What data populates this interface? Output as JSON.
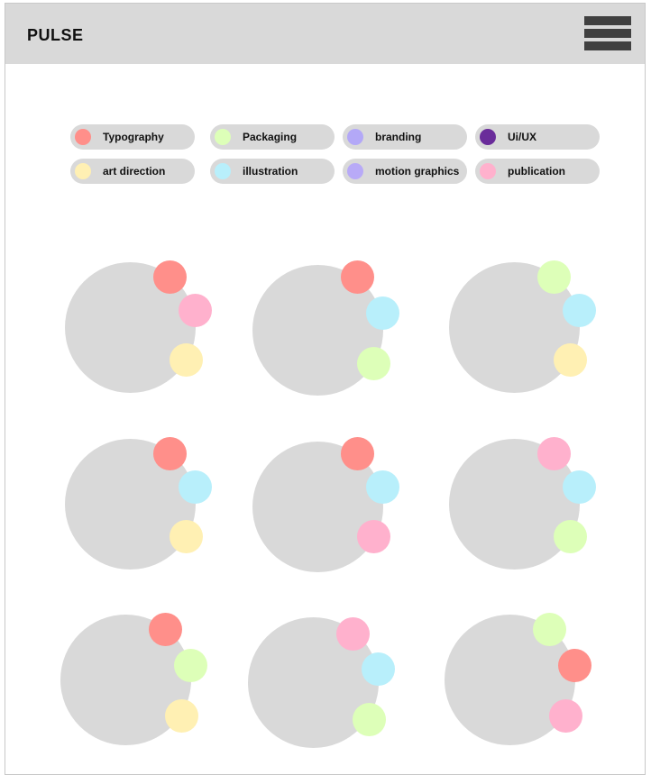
{
  "app": {
    "title": "PULSE",
    "menu_icon": "hamburger-menu-icon"
  },
  "categories": [
    {
      "id": "typography",
      "label": "Typography",
      "color": "#ff8f8a"
    },
    {
      "id": "packaging",
      "label": "Packaging",
      "color": "#ddffb8"
    },
    {
      "id": "branding",
      "label": "branding",
      "color": "#b3a8f7"
    },
    {
      "id": "uiux",
      "label": "Ui/UX",
      "color": "#6a2c9a"
    },
    {
      "id": "art-direction",
      "label": "art direction",
      "color": "#fff0b3"
    },
    {
      "id": "illustration",
      "label": "illustration",
      "color": "#b8effb"
    },
    {
      "id": "motion-graphics",
      "label": "motion graphics",
      "color": "#b8aaf7"
    },
    {
      "id": "publication",
      "label": "publication",
      "color": "#ffb1cd"
    }
  ],
  "cards": [
    {
      "tags": [
        "typography",
        "publication",
        "art-direction"
      ]
    },
    {
      "tags": [
        "typography",
        "illustration",
        "packaging"
      ]
    },
    {
      "tags": [
        "packaging",
        "illustration",
        "art-direction"
      ]
    },
    {
      "tags": [
        "typography",
        "illustration",
        "art-direction"
      ]
    },
    {
      "tags": [
        "typography",
        "illustration",
        "publication"
      ]
    },
    {
      "tags": [
        "publication",
        "illustration",
        "packaging"
      ]
    },
    {
      "tags": [
        "typography",
        "packaging",
        "art-direction"
      ]
    },
    {
      "tags": [
        "publication",
        "illustration",
        "packaging"
      ]
    },
    {
      "tags": [
        "packaging",
        "typography",
        "publication"
      ]
    }
  ]
}
